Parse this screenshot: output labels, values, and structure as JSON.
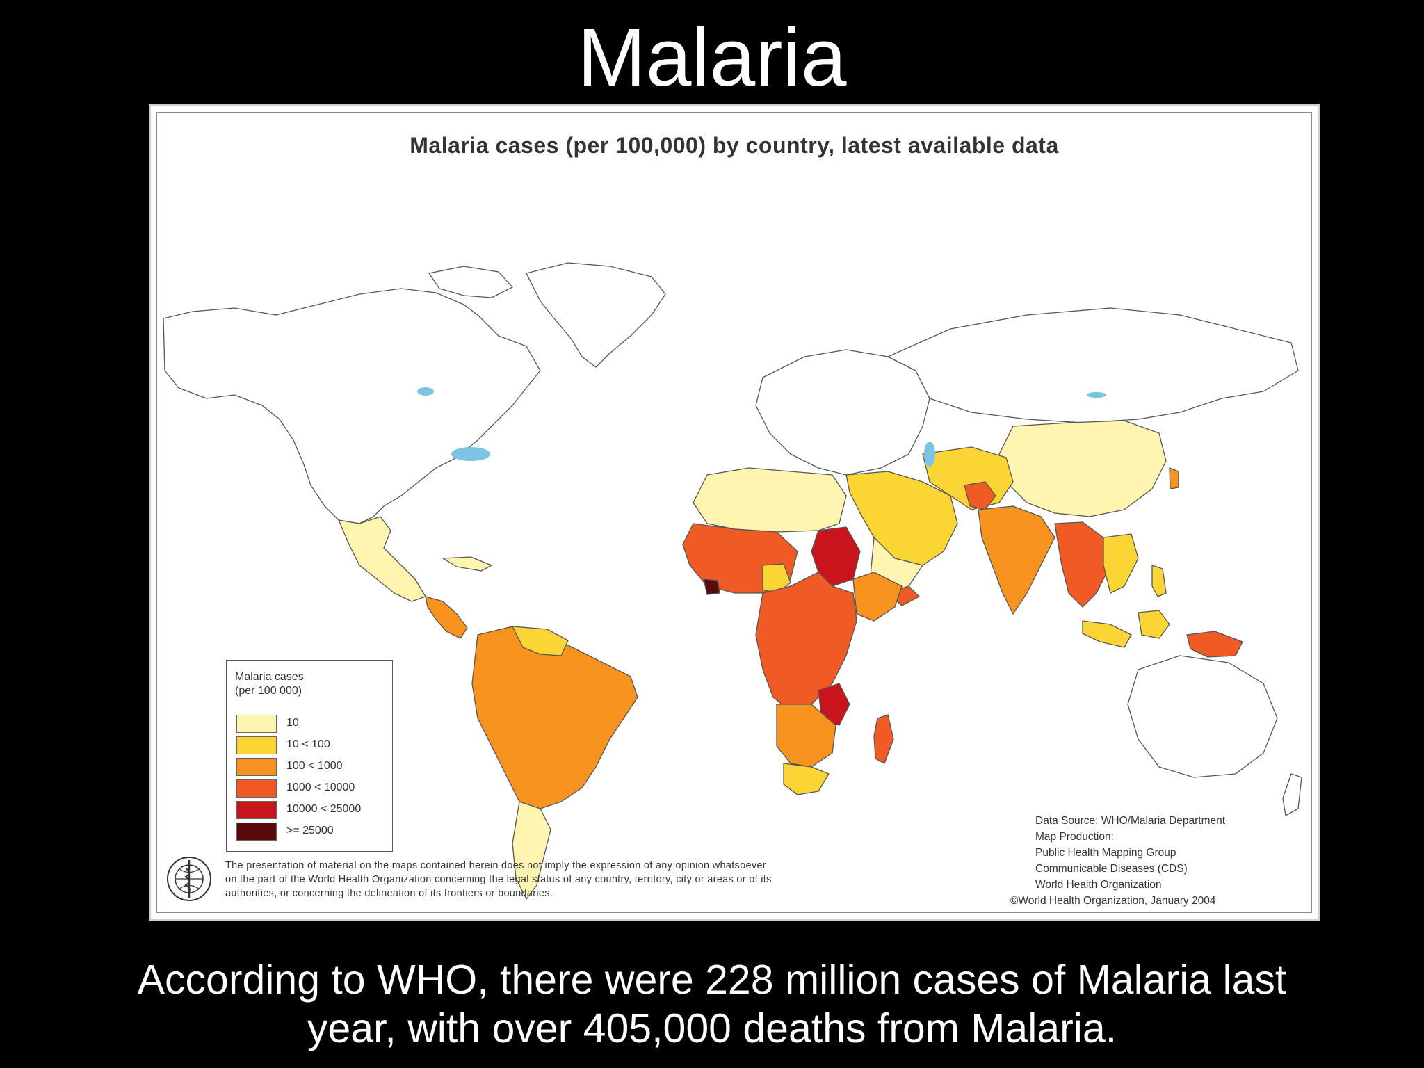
{
  "slide": {
    "title": "Malaria",
    "caption_line1": "According to WHO, there were 228 million cases of Malaria last",
    "caption_line2": "year, with over 405,000 deaths from Malaria."
  },
  "map": {
    "title": "Malaria cases (per 100,000) by country, latest available data",
    "legend": {
      "title_line1": "Malaria cases",
      "title_line2": "(per 100 000)",
      "items": [
        {
          "label": "10",
          "color": "#fff4b0"
        },
        {
          "label": "10 < 100",
          "color": "#fbd534"
        },
        {
          "label": "100 < 1000",
          "color": "#f7931e"
        },
        {
          "label": "1000 < 10000",
          "color": "#f05a24"
        },
        {
          "label": "10000 < 25000",
          "color": "#c8141a"
        },
        {
          "label": ">= 25000",
          "color": "#5a0a0a"
        }
      ]
    },
    "disclaimer": [
      "The presentation of material on the maps contained herein does not imply the expression of any opinion whatsoever",
      "on the part of the World Health Organization concerning the legal status of any country, territory, city or areas or of its",
      "authorities, or concerning the delineation of its frontiers or boundaries."
    ],
    "source": [
      "Data Source: WHO/Malaria Department",
      "Map Production:",
      "Public Health Mapping Group",
      "Communicable Diseases (CDS)",
      "World Health Organization",
      "©World Health Organization, January 2004"
    ],
    "colors": {
      "outline": "#555555",
      "water": "#7cc4e4",
      "no_data": "#ffffff"
    }
  }
}
